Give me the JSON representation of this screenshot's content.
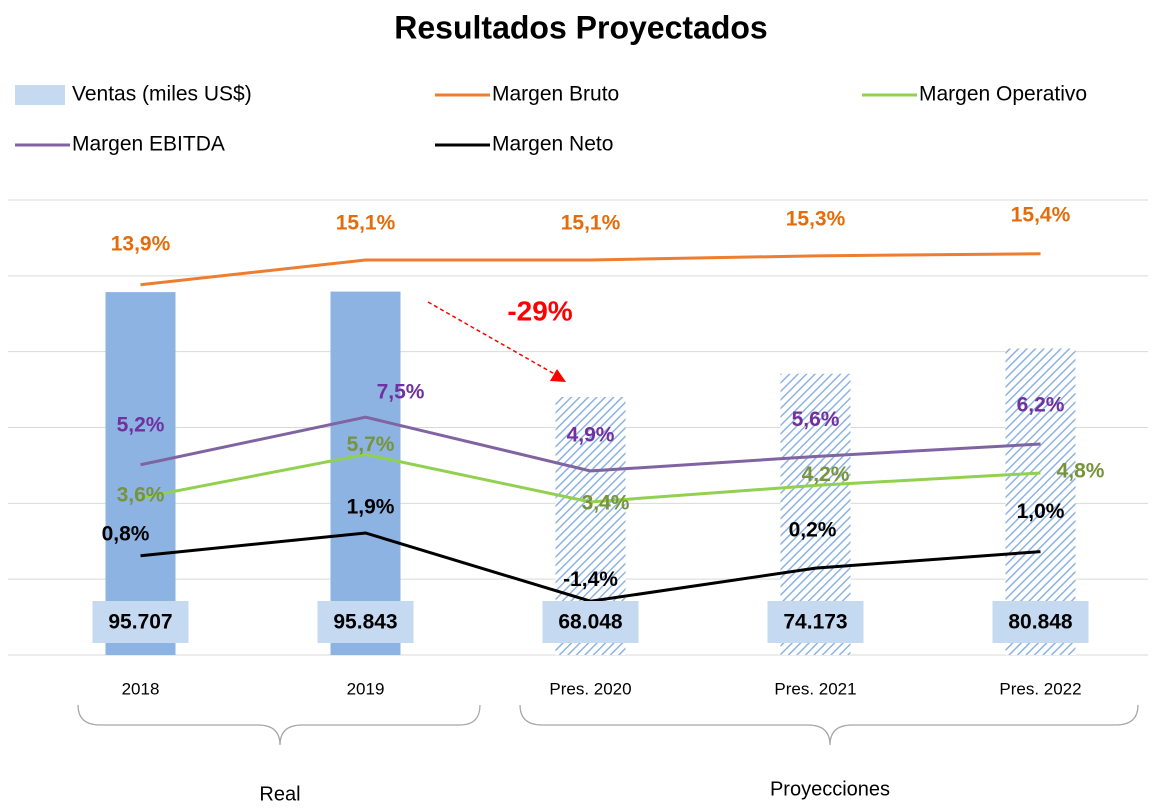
{
  "chart_data": {
    "type": "combo",
    "title": "Resultados Proyectados",
    "categories": [
      "2018",
      "2019",
      "Pres. 2020",
      "Pres. 2021",
      "Pres. 2022"
    ],
    "groups": [
      "Real",
      "Proyecciones"
    ],
    "annotation": "-29%",
    "ylim": [
      0,
      120000
    ],
    "yticks": [
      0,
      20000,
      40000,
      60000,
      80000,
      100000,
      120000
    ],
    "y2lim": [
      -4,
      18
    ],
    "grid": true,
    "series": [
      {
        "name": "Ventas (miles US$)",
        "type": "bar",
        "color": "#8db3e2",
        "hatched": [
          false,
          false,
          true,
          true,
          true
        ],
        "values": [
          95707,
          95843,
          68048,
          74173,
          80848
        ],
        "value_labels": [
          "95.707",
          "95.843",
          "68.048",
          "74.173",
          "80.848"
        ]
      },
      {
        "name": "Margen Bruto",
        "type": "line",
        "axis": "y2",
        "color": "#ed7d31",
        "label_color": "#e46c0a",
        "values": [
          13.9,
          15.1,
          15.1,
          15.3,
          15.4
        ],
        "value_labels": [
          "13,9%",
          "15,1%",
          "15,1%",
          "15,3%",
          "15,4%"
        ]
      },
      {
        "name": "Margen Operativo",
        "type": "line",
        "axis": "y2",
        "color": "#92d050",
        "label_color": "#77933c",
        "values": [
          3.6,
          5.7,
          3.4,
          4.2,
          4.8
        ],
        "value_labels": [
          "3,6%",
          "5,7%",
          "3,4%",
          "4,2%",
          "4,8%"
        ]
      },
      {
        "name": "Margen EBITDA",
        "type": "line",
        "axis": "y2",
        "color": "#8064a2",
        "label_color": "#7030a0",
        "values": [
          5.2,
          7.5,
          4.9,
          5.6,
          6.2
        ],
        "value_labels": [
          "5,2%",
          "7,5%",
          "4,9%",
          "5,6%",
          "6,2%"
        ]
      },
      {
        "name": "Margen Neto",
        "type": "line",
        "axis": "y2",
        "color": "#000000",
        "label_color": "#000000",
        "values": [
          0.8,
          1.9,
          -1.4,
          0.2,
          1.0
        ],
        "value_labels": [
          "0,8%",
          "1,9%",
          "-1,4%",
          "0,2%",
          "1,0%"
        ]
      }
    ]
  }
}
